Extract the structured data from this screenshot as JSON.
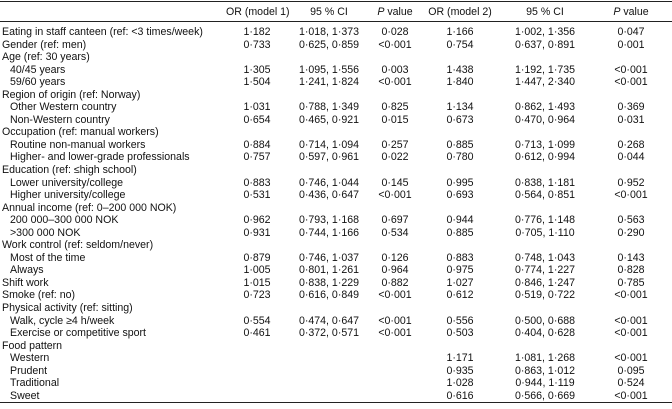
{
  "table": {
    "header": [
      "",
      "OR (model 1)",
      "95 % CI",
      "P value",
      "OR (model 2)",
      "95 % CI",
      "P value"
    ],
    "rows": [
      {
        "label": "Eating in staff canteen (ref: <3 times/week)",
        "model1": [
          "1·182",
          "1·018, 1·373",
          "0·028"
        ],
        "model2": [
          "1·166",
          "1·002, 1·356",
          "0·047"
        ]
      },
      {
        "label": "Gender (ref: men)",
        "model1": [
          "0·733",
          "0·625, 0·859",
          "<0·001"
        ],
        "model2": [
          "0·754",
          "0·637, 0·891",
          "0·001"
        ]
      },
      {
        "label": "Age (ref: 30 years)",
        "items": [
          {
            "label": "40/45 years",
            "model1": [
              "1·305",
              "1·095, 1·556",
              "0·003"
            ],
            "model2": [
              "1·438",
              "1·192, 1·735",
              "<0·001"
            ]
          },
          {
            "label": "59/60 years",
            "model1": [
              "1·504",
              "1·241, 1·824",
              "<0·001"
            ],
            "model2": [
              "1·840",
              "1·447, 2·340",
              "<0·001"
            ]
          }
        ]
      },
      {
        "label": "Region of origin (ref: Norway)",
        "items": [
          {
            "label": "Other Western country",
            "model1": [
              "1·031",
              "0·788, 1·349",
              "0·825"
            ],
            "model2": [
              "1·134",
              "0·862, 1·493",
              "0·369"
            ]
          },
          {
            "label": "Non-Western country",
            "model1": [
              "0·654",
              "0·465, 0·921",
              "0·015"
            ],
            "model2": [
              "0·673",
              "0·470, 0·964",
              "0·031"
            ]
          }
        ]
      },
      {
        "label": "Occupation (ref: manual workers)",
        "items": [
          {
            "label": "Routine non-manual workers",
            "model1": [
              "0·884",
              "0·714, 1·094",
              "0·257"
            ],
            "model2": [
              "0·885",
              "0·713, 1·099",
              "0·268"
            ]
          },
          {
            "label": "Higher- and lower-grade professionals",
            "model1": [
              "0·757",
              "0·597, 0·961",
              "0·022"
            ],
            "model2": [
              "0·780",
              "0·612, 0·994",
              "0·044"
            ]
          }
        ]
      },
      {
        "label": "Education (ref: ≤high school)",
        "items": [
          {
            "label": "Lower university/college",
            "model1": [
              "0·883",
              "0·746, 1·044",
              "0·145"
            ],
            "model2": [
              "0·995",
              "0·838, 1·181",
              "0·952"
            ]
          },
          {
            "label": "Higher university/college",
            "model1": [
              "0·531",
              "0·436, 0·647",
              "<0·001"
            ],
            "model2": [
              "0·693",
              "0·564, 0·851",
              "<0·001"
            ]
          }
        ]
      },
      {
        "label": "Annual income (ref: 0–200 000 NOK)",
        "items": [
          {
            "label": "200 000–300 000 NOK",
            "model1": [
              "0·962",
              "0·793, 1·168",
              "0·697"
            ],
            "model2": [
              "0·944",
              "0·776, 1·148",
              "0·563"
            ]
          },
          {
            "label": ">300 000 NOK",
            "model1": [
              "0·931",
              "0·744, 1·166",
              "0·534"
            ],
            "model2": [
              "0·885",
              "0·705, 1·110",
              "0·290"
            ]
          }
        ]
      },
      {
        "label": "Work control (ref: seldom/never)",
        "items": [
          {
            "label": "Most of the time",
            "model1": [
              "0·879",
              "0·746, 1·037",
              "0·126"
            ],
            "model2": [
              "0·883",
              "0·748, 1·043",
              "0·143"
            ]
          },
          {
            "label": "Always",
            "model1": [
              "1·005",
              "0·801, 1·261",
              "0·964"
            ],
            "model2": [
              "0·975",
              "0·774, 1·227",
              "0·828"
            ]
          }
        ]
      },
      {
        "label": "Shift work",
        "model1": [
          "1·015",
          "0·838, 1·229",
          "0·882"
        ],
        "model2": [
          "1·027",
          "0·846, 1·247",
          "0·785"
        ]
      },
      {
        "label": "Smoke (ref: no)",
        "model1": [
          "0·723",
          "0·616, 0·849",
          "<0·001"
        ],
        "model2": [
          "0·612",
          "0·519, 0·722",
          "<0·001"
        ]
      },
      {
        "label": "Physical activity (ref: sitting)",
        "items": [
          {
            "label": "Walk, cycle ≥4 h/week",
            "model1": [
              "0·554",
              "0·474, 0·647",
              "<0·001"
            ],
            "model2": [
              "0·556",
              "0·500, 0·688",
              "<0·001"
            ]
          },
          {
            "label": "Exercise or competitive sport",
            "model1": [
              "0·461",
              "0·372, 0·571",
              "<0·001"
            ],
            "model2": [
              "0·503",
              "0·404, 0·628",
              "<0·001"
            ]
          }
        ]
      },
      {
        "label": "Food pattern",
        "items": [
          {
            "label": "Western",
            "model2": [
              "1·171",
              "1·081, 1·268",
              "<0·001"
            ]
          },
          {
            "label": "Prudent",
            "model2": [
              "0·935",
              "0·863, 1·012",
              "0·095"
            ]
          },
          {
            "label": "Traditional",
            "model2": [
              "1·028",
              "0·944, 1·119",
              "0·524"
            ]
          },
          {
            "label": "Sweet",
            "model2": [
              "0·616",
              "0·566, 0·669",
              "<0·001"
            ]
          }
        ]
      }
    ]
  }
}
